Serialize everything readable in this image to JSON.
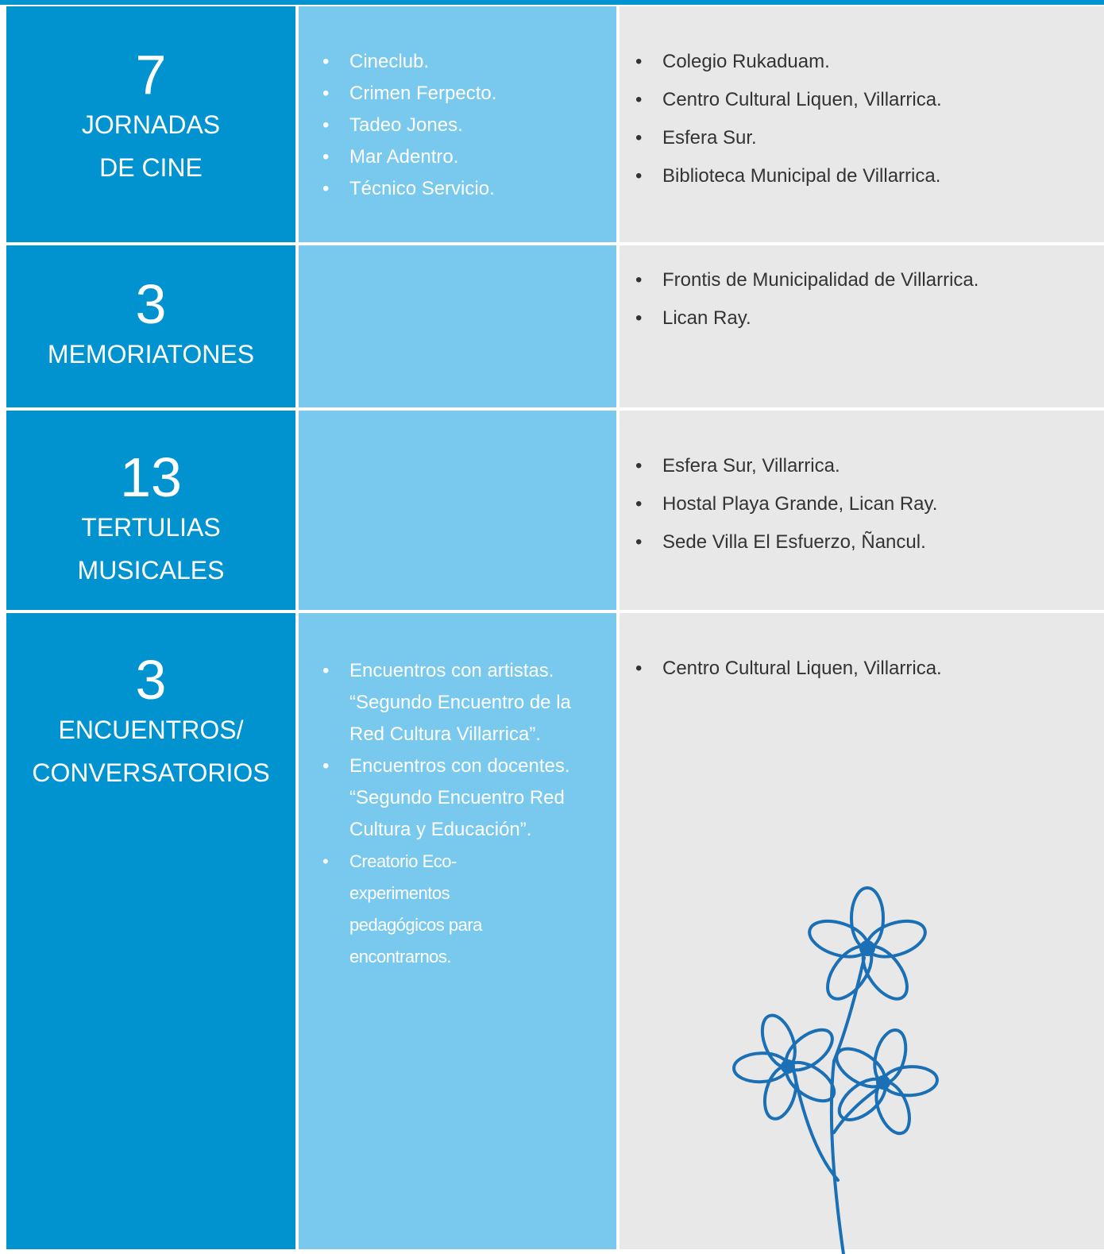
{
  "rows": [
    {
      "number": 7,
      "label": [
        "JORNADAS",
        "DE CINE"
      ],
      "activities": [
        "Cineclub.",
        "Crimen Ferpecto.",
        "Tadeo Jones.",
        "Mar Adentro.",
        "Técnico Servicio."
      ],
      "places": [
        "Colegio Rukaduam.",
        "Centro Cultural Liquen, Villarrica.",
        "Esfera Sur.",
        "Biblioteca Municipal de Villarrica."
      ]
    },
    {
      "number": 3,
      "label": [
        "MEMORIATONES"
      ],
      "activities": [],
      "places": [
        "Frontis de Municipalidad de Villarrica.",
        "Lican Ray."
      ]
    },
    {
      "number": 13,
      "label": [
        "TERTULIAS",
        "MUSICALES"
      ],
      "activities": [],
      "places": [
        "Esfera Sur, Villarrica.",
        "Hostal Playa Grande, Lican Ray.",
        "Sede Villa El Esfuerzo, Ñancul."
      ]
    },
    {
      "number": 3,
      "label": [
        "ENCUENTROS/",
        "CONVERSATORIOS"
      ],
      "activities": [
        "Encuentros con artistas. “Segundo Encuentro de la Red Cultura Villarrica”.",
        "Encuentros con docentes. “Segundo Encuentro Red Cultura y Educación”.",
        "Creatorio Eco-experimentos pedagógicos para encontrarnos."
      ],
      "places": [
        "Centro Cultural Liquen, Villarrica."
      ]
    }
  ]
}
